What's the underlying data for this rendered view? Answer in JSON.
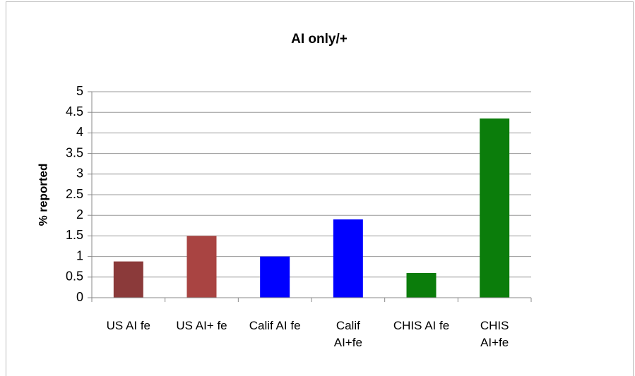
{
  "chart_data": {
    "type": "bar",
    "title": "AI only/+",
    "y_label": "% reported",
    "categories": [
      "US AI  fe",
      "US AI+ fe",
      "Calif AI fe",
      "Calif\nAI+fe",
      "CHIS AI fe",
      "CHIS\nAI+fe"
    ],
    "values": [
      0.88,
      1.5,
      1.0,
      1.9,
      0.6,
      4.35
    ],
    "colors": [
      "#8b3a3a",
      "#a94442",
      "#0000ff",
      "#0000ff",
      "#0b7d0b",
      "#0b7d0b"
    ],
    "ylim": [
      0,
      5
    ],
    "yticks": [
      0,
      0.5,
      1,
      1.5,
      2,
      2.5,
      3,
      3.5,
      4,
      4.5,
      5
    ],
    "grid": true
  }
}
